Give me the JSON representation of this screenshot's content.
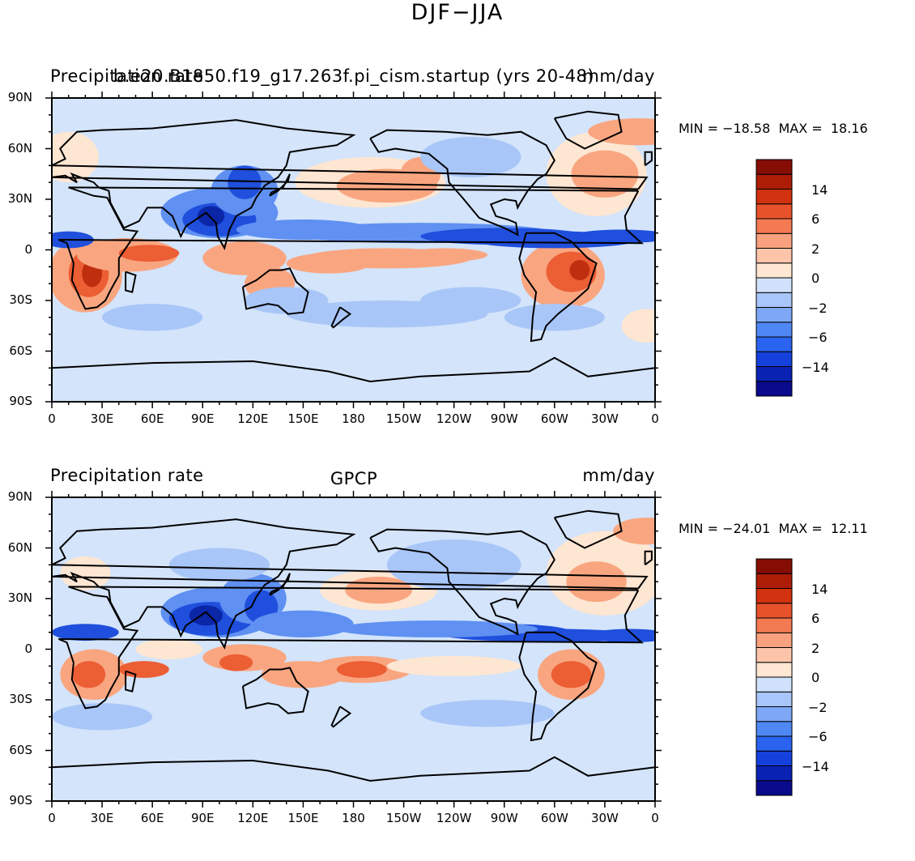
{
  "page_title": "DJF−JJA",
  "panels": [
    {
      "left_label": "Precipitation rate",
      "center_label": "b.e20.B1850.f19_g17.263f.pi_cism.startup (yrs 20-48)",
      "right_label": "mm/day",
      "min_max_text": "MIN = −18.58  MAX =  18.16",
      "y_ticks": [
        "90N",
        "60N",
        "30N",
        "0",
        "30S",
        "60S",
        "90S"
      ],
      "x_ticks": [
        "0",
        "30E",
        "60E",
        "90E",
        "120E",
        "150E",
        "180",
        "150W",
        "120W",
        "90W",
        "60W",
        "30W",
        "0"
      ],
      "colorbar_labels": [
        "14",
        "6",
        "2",
        "0",
        "−2",
        "−6",
        "−14"
      ]
    },
    {
      "left_label": "Precipitation rate",
      "center_label": "GPCP",
      "right_label": "mm/day",
      "min_max_text": "MIN = −24.01  MAX =  12.11",
      "y_ticks": [
        "90N",
        "60N",
        "30N",
        "0",
        "30S",
        "60S",
        "90S"
      ],
      "x_ticks": [
        "0",
        "30E",
        "60E",
        "90E",
        "120E",
        "150E",
        "180",
        "150W",
        "120W",
        "90W",
        "60W",
        "30W",
        "0"
      ],
      "colorbar_labels": [
        "14",
        "6",
        "2",
        "0",
        "−2",
        "−6",
        "−14"
      ]
    }
  ],
  "colorbar_colors": [
    "#0a0a8c",
    "#0a22b4",
    "#1441dc",
    "#2a63f0",
    "#4f88f5",
    "#7ea8f7",
    "#a8c6f9",
    "#d0e2fb",
    "#fde6d2",
    "#fcc5a9",
    "#f9a17e",
    "#f37a52",
    "#e8522a",
    "#d2320f",
    "#ad1d06",
    "#860d04"
  ],
  "map_colors": {
    "background": "#d3e4fb",
    "wet_light": "#fde6d2",
    "wet_mid": "#f9a680",
    "wet_strong": "#ec5e34",
    "wet_max": "#c02e10",
    "dry_light": "#a9c6f8",
    "dry_mid": "#5f90f2",
    "dry_strong": "#1f4fdc",
    "dry_max": "#0c26a8",
    "coast": "#000000"
  }
}
